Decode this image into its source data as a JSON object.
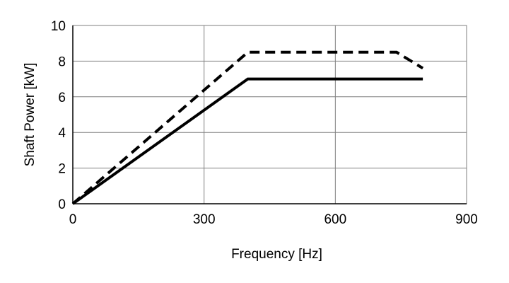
{
  "chart_data": {
    "type": "line",
    "title": "",
    "xlabel": "Frequency [Hz]",
    "ylabel": "Shaft Power [kW]",
    "xlim": [
      0,
      900
    ],
    "ylim": [
      0,
      10
    ],
    "x_ticks": [
      0,
      300,
      600,
      900
    ],
    "y_ticks": [
      0,
      2,
      4,
      6,
      8,
      10
    ],
    "x_tick_labels": [
      "0",
      "300",
      "600",
      "900"
    ],
    "y_tick_labels": [
      "0",
      "2",
      "4",
      "6",
      "8",
      "10"
    ],
    "grid": true,
    "legend": "none",
    "series": [
      {
        "style": "solid",
        "color": "#000000",
        "x": [
          0,
          400,
          800
        ],
        "y": [
          0,
          7.0,
          7.0
        ]
      },
      {
        "style": "dashed",
        "color": "#000000",
        "x": [
          0,
          400,
          740,
          800
        ],
        "y": [
          0,
          8.5,
          8.5,
          7.6
        ]
      }
    ]
  }
}
